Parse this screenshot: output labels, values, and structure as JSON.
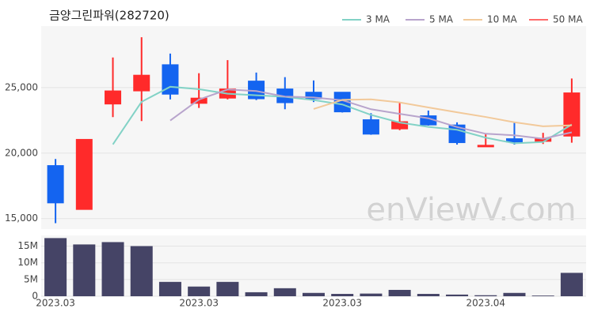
{
  "chart_data": [
    {
      "type": "candlestick",
      "title": "금양그린파워(282720)",
      "watermark": "enViewV.com",
      "categories": [
        "2023.03",
        null,
        null,
        null,
        null,
        "2023.03",
        null,
        null,
        null,
        null,
        "2023.03",
        null,
        null,
        null,
        null,
        "2023.04",
        null,
        null,
        null
      ],
      "open": [
        19050,
        15700,
        23750,
        24750,
        26750,
        23800,
        24200,
        25500,
        24900,
        24650,
        24650,
        22550,
        21850,
        22850,
        22150,
        20500,
        21100,
        20900,
        21300
      ],
      "high": [
        19550,
        21050,
        27300,
        28850,
        27600,
        26100,
        27100,
        26150,
        25800,
        25550,
        24650,
        23050,
        23850,
        23250,
        22350,
        21450,
        22400,
        21550,
        25700
      ],
      "low": [
        14650,
        15700,
        22750,
        22450,
        24100,
        23450,
        24100,
        24050,
        23350,
        23900,
        23100,
        21400,
        21750,
        22100,
        20650,
        20500,
        20650,
        20700,
        20800
      ],
      "close": [
        16200,
        21050,
        24750,
        25950,
        24500,
        24200,
        24900,
        24150,
        23850,
        24150,
        23150,
        21450,
        22400,
        22150,
        20800,
        20600,
        20850,
        21100,
        24600
      ],
      "up_color": "#ff2a2a",
      "down_color": "#1464f0",
      "series": [
        {
          "name": "3 MA",
          "color": "#82d2c6",
          "values": [
            null,
            null,
            20667,
            23917,
            25067,
            24883,
            24533,
            24417,
            24300,
            24050,
            23717,
            22917,
            22333,
            22000,
            21783,
            21183,
            20750,
            20850,
            22183
          ]
        },
        {
          "name": "5 MA",
          "color": "#b8a4cc",
          "values": [
            null,
            null,
            null,
            null,
            22490,
            24090,
            24860,
            24740,
            24320,
            24250,
            24040,
            23350,
            23000,
            22660,
            21990,
            21480,
            21360,
            21100,
            21590
          ]
        },
        {
          "name": "10 MA",
          "color": "#f2c99a",
          "values": [
            null,
            null,
            null,
            null,
            null,
            null,
            null,
            null,
            null,
            23370,
            24065,
            24105,
            23870,
            23490,
            23120,
            22760,
            22355,
            22050,
            22125
          ]
        },
        {
          "name": "50 MA",
          "color": "#ff6a6a",
          "values": [
            null,
            null,
            null,
            null,
            null,
            null,
            null,
            null,
            null,
            null,
            null,
            null,
            null,
            null,
            null,
            null,
            null,
            null,
            null
          ]
        }
      ],
      "ylim": [
        14200,
        29700
      ],
      "yticks": [
        {
          "value": 15000,
          "label": "15,000"
        },
        {
          "value": 20000,
          "label": "20,000"
        },
        {
          "value": 25000,
          "label": "25,000"
        }
      ],
      "grid": true
    },
    {
      "type": "bar",
      "color": "#454466",
      "values": [
        17400000,
        15500000,
        16200000,
        15000000,
        4300000,
        2900000,
        4300000,
        1200000,
        2400000,
        1000000,
        700000,
        800000,
        1900000,
        700000,
        500000,
        300000,
        1000000,
        200000,
        7000000
      ],
      "ylim": [
        0,
        18200000
      ],
      "yticks": [
        0,
        {
          "value": 5000000,
          "label": "5M"
        },
        {
          "value": 10000000,
          "label": "10M"
        },
        {
          "value": 15000000,
          "label": "15M"
        }
      ],
      "grid": true
    }
  ]
}
